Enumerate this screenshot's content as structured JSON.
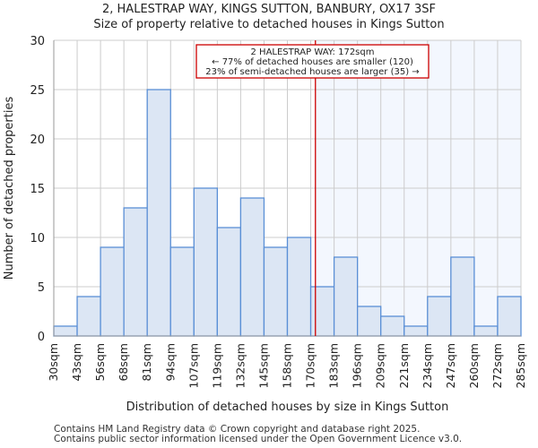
{
  "chart_data": {
    "type": "bar",
    "title": "2, HALESTRAP WAY, KINGS SUTTON, BANBURY, OX17 3SF",
    "subtitle": "Size of property relative to detached houses in Kings Sutton",
    "xlabel": "Distribution of detached houses by size in Kings Sutton",
    "ylabel": "Number of detached properties",
    "tick_labels": [
      "30sqm",
      "43sqm",
      "56sqm",
      "68sqm",
      "81sqm",
      "94sqm",
      "107sqm",
      "119sqm",
      "132sqm",
      "145sqm",
      "158sqm",
      "170sqm",
      "183sqm",
      "196sqm",
      "209sqm",
      "221sqm",
      "234sqm",
      "247sqm",
      "260sqm",
      "272sqm",
      "285sqm"
    ],
    "values": [
      1,
      4,
      9,
      13,
      25,
      9,
      15,
      11,
      14,
      9,
      10,
      5,
      8,
      3,
      2,
      1,
      4,
      8,
      1,
      4
    ],
    "ylim": [
      0,
      30
    ],
    "yticks": [
      0,
      5,
      10,
      15,
      20,
      25,
      30
    ],
    "grid": true,
    "marker_bin_position": 11.2,
    "annotation": {
      "line1": "2 HALESTRAP WAY: 172sqm",
      "line2": "← 77% of detached houses are smaller (120)",
      "line3": "23% of semi-detached houses are larger (35) →"
    },
    "colors": {
      "bar_fill": "#dce6f4",
      "bar_stroke": "#5a8fd6",
      "highlight_bg": "#f3f7fe",
      "marker": "#cc0000",
      "grid": "#cccccc"
    }
  },
  "footer": {
    "line1": "Contains HM Land Registry data © Crown copyright and database right 2025.",
    "line2": "Contains public sector information licensed under the Open Government Licence v3.0."
  }
}
